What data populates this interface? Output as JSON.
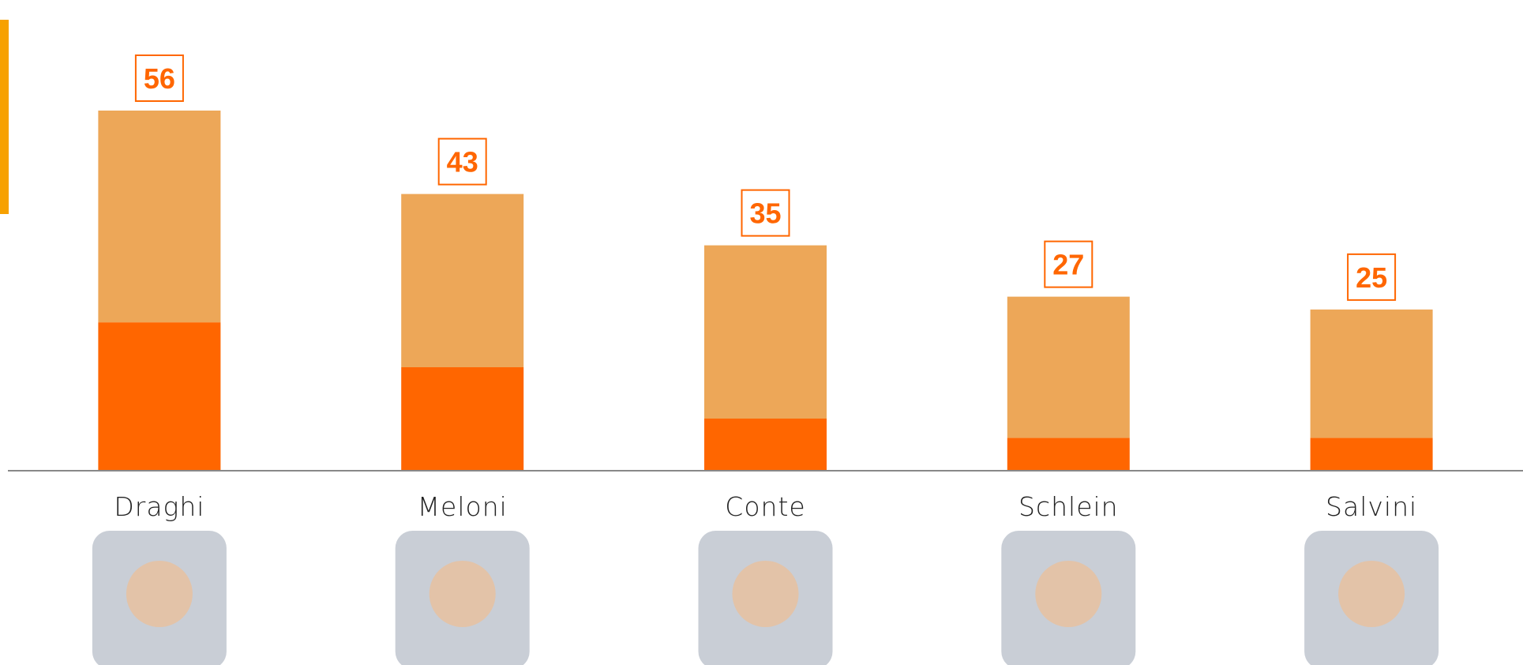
{
  "chart_data": {
    "type": "stacked-bar",
    "categories": [
      "Draghi",
      "Meloni",
      "Conte",
      "Schlein",
      "Salvini"
    ],
    "series": [
      {
        "color": "#ff6600",
        "values": [
          23,
          16,
          8,
          5,
          5
        ]
      },
      {
        "color": "#eda758",
        "values": [
          33,
          27,
          27,
          22,
          20
        ]
      }
    ],
    "totals": [
      56,
      43,
      35,
      27,
      25
    ],
    "label_color": "#ff6600"
  }
}
